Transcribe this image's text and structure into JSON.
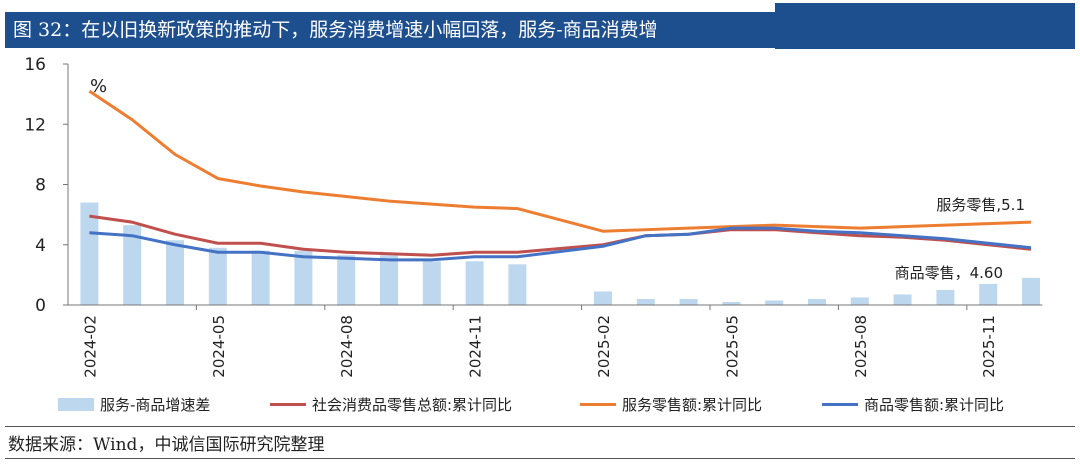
{
  "title": "图 32：在以旧换新政策的推动下，服务消费增速小幅回落，服务-商品消费增",
  "source": "数据来源：Wind，中诚信国际研究院整理",
  "chart_data": {
    "type": "bar+line",
    "unit_label": "%",
    "ylim": [
      0,
      16
    ],
    "yticks": [
      "0",
      "4",
      "8",
      "12",
      "16"
    ],
    "categories": [
      "2024-02",
      "2024-03",
      "2024-04",
      "2024-05",
      "2024-06",
      "2024-07",
      "2024-08",
      "2024-09",
      "2024-10",
      "2024-11",
      "2024-12",
      "2025-01",
      "2025-02",
      "2025-03",
      "2025-04",
      "2025-05",
      "2025-06",
      "2025-07",
      "2025-08",
      "2025-09",
      "2025-10",
      "2025-11",
      "2025-12"
    ],
    "xtick_labels": [
      "2024-02",
      "2024-05",
      "2024-08",
      "2024-11",
      "2025-02",
      "2025-05",
      "2025-08",
      "2025-11"
    ],
    "series": [
      {
        "name": "服务-商品增速差",
        "type": "bar",
        "color": "#bdd7ee",
        "values": [
          6.8,
          5.3,
          4.3,
          3.8,
          3.6,
          3.6,
          3.3,
          3.3,
          2.9,
          2.9,
          2.7,
          null,
          0.9,
          0.4,
          0.4,
          0.2,
          0.3,
          0.4,
          0.5,
          0.7,
          1.0,
          1.4,
          1.8
        ]
      },
      {
        "name": "社会消费品零售总额:累计同比",
        "type": "line",
        "color": "#c0504d",
        "values": [
          5.9,
          5.5,
          4.7,
          4.1,
          4.1,
          3.7,
          3.5,
          3.4,
          3.3,
          3.5,
          3.5,
          null,
          4.0,
          4.6,
          4.7,
          5.0,
          5.0,
          4.8,
          4.6,
          4.5,
          4.3,
          4.0,
          3.7
        ]
      },
      {
        "name": "服务零售额:累计同比",
        "type": "line",
        "color": "#ed7d31",
        "values": [
          14.2,
          12.3,
          10.0,
          8.4,
          7.9,
          7.5,
          7.2,
          6.9,
          6.7,
          6.5,
          6.4,
          null,
          4.9,
          5.0,
          5.1,
          5.2,
          5.3,
          5.2,
          5.1,
          5.2,
          5.3,
          5.4,
          5.5
        ]
      },
      {
        "name": "商品零售额:累计同比",
        "type": "line",
        "color": "#4472c4",
        "values": [
          4.8,
          4.6,
          4.0,
          3.5,
          3.5,
          3.2,
          3.1,
          3.0,
          3.0,
          3.2,
          3.2,
          null,
          3.9,
          4.6,
          4.7,
          5.1,
          5.1,
          4.9,
          4.8,
          4.6,
          4.4,
          4.1,
          3.8
        ]
      }
    ],
    "annotations": [
      "服务零售,5.1",
      "商品零售，4.60"
    ]
  }
}
